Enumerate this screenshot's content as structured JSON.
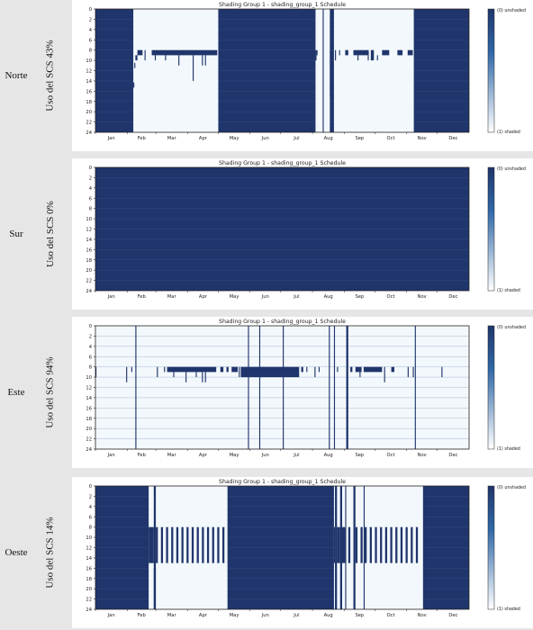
{
  "colors": {
    "unshaded": "#1f356b",
    "shaded": "#f3f8fc",
    "grid": "#4a6599",
    "page_bg": "#e6e6e6"
  },
  "common": {
    "title": "Shading Group 1 - shading_group_1 Schedule",
    "months": [
      "Jan",
      "Feb",
      "Mar",
      "Apr",
      "May",
      "Jun",
      "Jul",
      "Aug",
      "Sep",
      "Oct",
      "Nov",
      "Dec"
    ],
    "y_ticks": [
      "0",
      "2",
      "4",
      "6",
      "8",
      "10",
      "12",
      "14",
      "16",
      "18",
      "20",
      "22",
      "24"
    ],
    "legend_top": "(0) unshaded",
    "legend_bottom": "(1) shaded"
  },
  "rows": [
    {
      "orientation": "Norte",
      "usage": "Uso del SCS 43%"
    },
    {
      "orientation": "Sur",
      "usage": "Uso del SCS 0%"
    },
    {
      "orientation": "Este",
      "usage": "Uso del SCS 94%"
    },
    {
      "orientation": "Oeste",
      "usage": "Uso del SCS 14%"
    }
  ],
  "chart_data": [
    {
      "type": "heatmap",
      "title": "Shading Group 1 - shading_group_1 Schedule",
      "x_categories": [
        "Jan",
        "Feb",
        "Mar",
        "Apr",
        "May",
        "Jun",
        "Jul",
        "Aug",
        "Sep",
        "Oct",
        "Nov",
        "Dec"
      ],
      "y_range_hours": [
        0,
        24
      ],
      "colorbar": [
        "(0) unshaded",
        "(1) shaded"
      ],
      "base_state": 0,
      "rects": [
        {
          "day_start": 37,
          "day_end": 120,
          "hour_start": 0,
          "hour_end": 24,
          "state": 1
        },
        {
          "day_start": 37,
          "day_end": 38,
          "hour_start": 14.3,
          "hour_end": 15.3,
          "state": 0
        },
        {
          "day_start": 38,
          "day_end": 39,
          "hour_start": 10.5,
          "hour_end": 11.5,
          "state": 0
        },
        {
          "day_start": 39,
          "day_end": 41,
          "hour_start": 9,
          "hour_end": 10,
          "state": 0
        },
        {
          "day_start": 41,
          "day_end": 46,
          "hour_start": 8,
          "hour_end": 9,
          "state": 0
        },
        {
          "day_start": 48,
          "day_end": 49,
          "hour_start": 8,
          "hour_end": 10,
          "state": 0
        },
        {
          "day_start": 55,
          "day_end": 119,
          "hour_start": 8,
          "hour_end": 9,
          "state": 0
        },
        {
          "day_start": 58,
          "day_end": 59,
          "hour_start": 9,
          "hour_end": 10,
          "state": 0
        },
        {
          "day_start": 68,
          "day_end": 69,
          "hour_start": 9,
          "hour_end": 10,
          "state": 0
        },
        {
          "day_start": 81,
          "day_end": 82,
          "hour_start": 9,
          "hour_end": 11,
          "state": 0
        },
        {
          "day_start": 95,
          "day_end": 96,
          "hour_start": 9,
          "hour_end": 14,
          "state": 0
        },
        {
          "day_start": 104,
          "day_end": 105,
          "hour_start": 9,
          "hour_end": 11,
          "state": 0
        },
        {
          "day_start": 107,
          "day_end": 108,
          "hour_start": 9,
          "hour_end": 11,
          "state": 0
        },
        {
          "day_start": 215,
          "day_end": 222,
          "hour_start": 0,
          "hour_end": 24,
          "state": 1
        },
        {
          "day_start": 223,
          "day_end": 229,
          "hour_start": 0,
          "hour_end": 24,
          "state": 1
        },
        {
          "day_start": 233,
          "day_end": 311,
          "hour_start": 0,
          "hour_end": 24,
          "state": 1
        },
        {
          "day_start": 215,
          "day_end": 216,
          "hour_start": 8,
          "hour_end": 10,
          "state": 0
        },
        {
          "day_start": 216,
          "day_end": 217,
          "hour_start": 8,
          "hour_end": 9,
          "state": 0
        },
        {
          "day_start": 229,
          "day_end": 230,
          "hour_start": 8,
          "hour_end": 17,
          "state": 0
        },
        {
          "day_start": 234,
          "day_end": 235,
          "hour_start": 8,
          "hour_end": 10,
          "state": 0
        },
        {
          "day_start": 238,
          "day_end": 239,
          "hour_start": 8,
          "hour_end": 9,
          "state": 0
        },
        {
          "day_start": 244,
          "day_end": 247,
          "hour_start": 8,
          "hour_end": 9,
          "state": 0
        },
        {
          "day_start": 252,
          "day_end": 267,
          "hour_start": 8,
          "hour_end": 9,
          "state": 0
        },
        {
          "day_start": 256,
          "day_end": 257,
          "hour_start": 9,
          "hour_end": 10,
          "state": 0
        },
        {
          "day_start": 266,
          "day_end": 267,
          "hour_start": 9,
          "hour_end": 10,
          "state": 0
        },
        {
          "day_start": 269,
          "day_end": 272,
          "hour_start": 8,
          "hour_end": 10,
          "state": 0
        },
        {
          "day_start": 275,
          "day_end": 276,
          "hour_start": 9,
          "hour_end": 10,
          "state": 0
        },
        {
          "day_start": 280,
          "day_end": 287,
          "hour_start": 8,
          "hour_end": 9,
          "state": 0
        },
        {
          "day_start": 295,
          "day_end": 300,
          "hour_start": 8,
          "hour_end": 9,
          "state": 0
        },
        {
          "day_start": 305,
          "day_end": 310,
          "hour_start": 8,
          "hour_end": 9,
          "state": 0
        }
      ]
    },
    {
      "type": "heatmap",
      "title": "Shading Group 1 - shading_group_1 Schedule",
      "x_categories": [
        "Jan",
        "Feb",
        "Mar",
        "Apr",
        "May",
        "Jun",
        "Jul",
        "Aug",
        "Sep",
        "Oct",
        "Nov",
        "Dec"
      ],
      "y_range_hours": [
        0,
        24
      ],
      "colorbar": [
        "(0) unshaded",
        "(1) shaded"
      ],
      "base_state": 0,
      "rects": []
    },
    {
      "type": "heatmap",
      "title": "Shading Group 1 - shading_group_1 Schedule",
      "x_categories": [
        "Jan",
        "Feb",
        "Mar",
        "Apr",
        "May",
        "Jun",
        "Jul",
        "Aug",
        "Sep",
        "Oct",
        "Nov",
        "Dec"
      ],
      "y_range_hours": [
        0,
        24
      ],
      "colorbar": [
        "(0) unshaded",
        "(1) shaded"
      ],
      "base_state": 1,
      "rects": [
        {
          "day_start": 39,
          "day_end": 40,
          "hour_start": 0,
          "hour_end": 24,
          "state": 0
        },
        {
          "day_start": 149,
          "day_end": 150,
          "hour_start": 0,
          "hour_end": 24,
          "state": 0
        },
        {
          "day_start": 160,
          "day_end": 161,
          "hour_start": 0,
          "hour_end": 24,
          "state": 0
        },
        {
          "day_start": 183,
          "day_end": 184,
          "hour_start": 0,
          "hour_end": 24,
          "state": 0
        },
        {
          "day_start": 228,
          "day_end": 229,
          "hour_start": 0,
          "hour_end": 24,
          "state": 0
        },
        {
          "day_start": 233,
          "day_end": 234,
          "hour_start": 0,
          "hour_end": 24,
          "state": 0
        },
        {
          "day_start": 245,
          "day_end": 247,
          "hour_start": 0,
          "hour_end": 24,
          "state": 0
        },
        {
          "day_start": 312,
          "day_end": 313,
          "hour_start": 0,
          "hour_end": 24,
          "state": 0
        },
        {
          "day_start": 0,
          "day_end": 1,
          "hour_start": 8,
          "hour_end": 10,
          "state": 0
        },
        {
          "day_start": 30,
          "day_end": 31,
          "hour_start": 8,
          "hour_end": 11,
          "state": 0
        },
        {
          "day_start": 35,
          "day_end": 36,
          "hour_start": 8,
          "hour_end": 9,
          "state": 0
        },
        {
          "day_start": 60,
          "day_end": 61,
          "hour_start": 8,
          "hour_end": 10,
          "state": 0
        },
        {
          "day_start": 67,
          "day_end": 68,
          "hour_start": 8,
          "hour_end": 9,
          "state": 0
        },
        {
          "day_start": 70,
          "day_end": 118,
          "hour_start": 8,
          "hour_end": 9,
          "state": 0
        },
        {
          "day_start": 76,
          "day_end": 77,
          "hour_start": 9,
          "hour_end": 10,
          "state": 0
        },
        {
          "day_start": 88,
          "day_end": 89,
          "hour_start": 9,
          "hour_end": 11,
          "state": 0
        },
        {
          "day_start": 98,
          "day_end": 99,
          "hour_start": 9,
          "hour_end": 10,
          "state": 0
        },
        {
          "day_start": 104,
          "day_end": 105,
          "hour_start": 9,
          "hour_end": 11,
          "state": 0
        },
        {
          "day_start": 107,
          "day_end": 108,
          "hour_start": 9,
          "hour_end": 11,
          "state": 0
        },
        {
          "day_start": 122,
          "day_end": 125,
          "hour_start": 8,
          "hour_end": 9,
          "state": 0
        },
        {
          "day_start": 128,
          "day_end": 130,
          "hour_start": 8,
          "hour_end": 9,
          "state": 0
        },
        {
          "day_start": 133,
          "day_end": 139,
          "hour_start": 8,
          "hour_end": 9,
          "state": 0
        },
        {
          "day_start": 140,
          "day_end": 141,
          "hour_start": 8,
          "hour_end": 10,
          "state": 0
        },
        {
          "day_start": 142,
          "day_end": 199,
          "hour_start": 8,
          "hour_end": 10,
          "state": 0
        },
        {
          "day_start": 201,
          "day_end": 203,
          "hour_start": 8,
          "hour_end": 9,
          "state": 0
        },
        {
          "day_start": 206,
          "day_end": 207,
          "hour_start": 8,
          "hour_end": 9,
          "state": 0
        },
        {
          "day_start": 214,
          "day_end": 215,
          "hour_start": 8,
          "hour_end": 10,
          "state": 0
        },
        {
          "day_start": 218,
          "day_end": 219,
          "hour_start": 8,
          "hour_end": 9,
          "state": 0
        },
        {
          "day_start": 236,
          "day_end": 237,
          "hour_start": 8,
          "hour_end": 9,
          "state": 0
        },
        {
          "day_start": 249,
          "day_end": 251,
          "hour_start": 8,
          "hour_end": 9,
          "state": 0
        },
        {
          "day_start": 254,
          "day_end": 260,
          "hour_start": 8,
          "hour_end": 9,
          "state": 0
        },
        {
          "day_start": 258,
          "day_end": 259,
          "hour_start": 9,
          "hour_end": 10,
          "state": 0
        },
        {
          "day_start": 262,
          "day_end": 280,
          "hour_start": 8,
          "hour_end": 9,
          "state": 0
        },
        {
          "day_start": 282,
          "day_end": 283,
          "hour_start": 8,
          "hour_end": 11,
          "state": 0
        },
        {
          "day_start": 289,
          "day_end": 292,
          "hour_start": 8,
          "hour_end": 9,
          "state": 0
        },
        {
          "day_start": 305,
          "day_end": 306,
          "hour_start": 8,
          "hour_end": 10,
          "state": 0
        },
        {
          "day_start": 310,
          "day_end": 311,
          "hour_start": 8,
          "hour_end": 10,
          "state": 0
        },
        {
          "day_start": 338,
          "day_end": 339,
          "hour_start": 8,
          "hour_end": 10,
          "state": 0
        }
      ]
    },
    {
      "type": "heatmap",
      "title": "Shading Group 1 - shading_group_1 Schedule",
      "x_categories": [
        "Jan",
        "Feb",
        "Mar",
        "Apr",
        "May",
        "Jun",
        "Jul",
        "Aug",
        "Sep",
        "Oct",
        "Nov",
        "Dec"
      ],
      "y_range_hours": [
        0,
        24
      ],
      "colorbar": [
        "(0) unshaded",
        "(1) shaded"
      ],
      "base_state": 0,
      "rects": [
        {
          "day_start": 52,
          "day_end": 57,
          "hour_start": 0,
          "hour_end": 24,
          "state": 1
        },
        {
          "day_start": 59,
          "day_end": 129,
          "hour_start": 0,
          "hour_end": 24,
          "state": 1
        },
        {
          "day_start": 233,
          "day_end": 234,
          "hour_start": 0,
          "hour_end": 24,
          "state": 1
        },
        {
          "day_start": 236,
          "day_end": 239,
          "hour_start": 0,
          "hour_end": 24,
          "state": 1
        },
        {
          "day_start": 241,
          "day_end": 244,
          "hour_start": 0,
          "hour_end": 24,
          "state": 1
        },
        {
          "day_start": 245,
          "day_end": 252,
          "hour_start": 0,
          "hour_end": 24,
          "state": 1
        },
        {
          "day_start": 254,
          "day_end": 262,
          "hour_start": 0,
          "hour_end": 24,
          "state": 1
        },
        {
          "day_start": 263,
          "day_end": 320,
          "hour_start": 0,
          "hour_end": 24,
          "state": 1
        },
        {
          "day_start": 57,
          "day_end": 59,
          "hour_start": 16,
          "hour_end": 24,
          "state": 0
        },
        {
          "day_start": 52,
          "day_end": 57,
          "hour_start": 8,
          "hour_end": 15,
          "state": 0
        },
        {
          "day_start": 59,
          "day_end": 61,
          "hour_start": 8,
          "hour_end": 15,
          "state": 0
        },
        {
          "day_start": 64,
          "day_end": 66,
          "hour_start": 8,
          "hour_end": 15,
          "state": 0
        },
        {
          "day_start": 69,
          "day_end": 71,
          "hour_start": 8,
          "hour_end": 15,
          "state": 0
        },
        {
          "day_start": 74,
          "day_end": 76,
          "hour_start": 8,
          "hour_end": 15,
          "state": 0
        },
        {
          "day_start": 79,
          "day_end": 81,
          "hour_start": 8,
          "hour_end": 15,
          "state": 0
        },
        {
          "day_start": 84,
          "day_end": 86,
          "hour_start": 8,
          "hour_end": 15,
          "state": 0
        },
        {
          "day_start": 89,
          "day_end": 91,
          "hour_start": 8,
          "hour_end": 15,
          "state": 0
        },
        {
          "day_start": 94,
          "day_end": 96,
          "hour_start": 8,
          "hour_end": 15,
          "state": 0
        },
        {
          "day_start": 99,
          "day_end": 101,
          "hour_start": 8,
          "hour_end": 15,
          "state": 0
        },
        {
          "day_start": 104,
          "day_end": 106,
          "hour_start": 8,
          "hour_end": 15,
          "state": 0
        },
        {
          "day_start": 109,
          "day_end": 111,
          "hour_start": 8,
          "hour_end": 15,
          "state": 0
        },
        {
          "day_start": 114,
          "day_end": 116,
          "hour_start": 8,
          "hour_end": 15,
          "state": 0
        },
        {
          "day_start": 119,
          "day_end": 121,
          "hour_start": 8,
          "hour_end": 15,
          "state": 0
        },
        {
          "day_start": 124,
          "day_end": 126,
          "hour_start": 8,
          "hour_end": 15,
          "state": 0
        },
        {
          "day_start": 233,
          "day_end": 234,
          "hour_start": 8,
          "hour_end": 15,
          "state": 0
        },
        {
          "day_start": 236,
          "day_end": 239,
          "hour_start": 8,
          "hour_end": 15,
          "state": 0
        },
        {
          "day_start": 241,
          "day_end": 244,
          "hour_start": 8,
          "hour_end": 15,
          "state": 0
        },
        {
          "day_start": 247,
          "day_end": 249,
          "hour_start": 8,
          "hour_end": 15,
          "state": 0
        },
        {
          "day_start": 254,
          "day_end": 256,
          "hour_start": 8,
          "hour_end": 15,
          "state": 0
        },
        {
          "day_start": 259,
          "day_end": 261,
          "hour_start": 8,
          "hour_end": 15,
          "state": 0
        },
        {
          "day_start": 263,
          "day_end": 265,
          "hour_start": 8,
          "hour_end": 15,
          "state": 0
        },
        {
          "day_start": 268,
          "day_end": 270,
          "hour_start": 8,
          "hour_end": 15,
          "state": 0
        },
        {
          "day_start": 273,
          "day_end": 275,
          "hour_start": 8,
          "hour_end": 15,
          "state": 0
        },
        {
          "day_start": 278,
          "day_end": 280,
          "hour_start": 8,
          "hour_end": 15,
          "state": 0
        },
        {
          "day_start": 283,
          "day_end": 285,
          "hour_start": 8,
          "hour_end": 15,
          "state": 0
        },
        {
          "day_start": 288,
          "day_end": 290,
          "hour_start": 8,
          "hour_end": 15,
          "state": 0
        },
        {
          "day_start": 293,
          "day_end": 295,
          "hour_start": 8,
          "hour_end": 15,
          "state": 0
        },
        {
          "day_start": 298,
          "day_end": 300,
          "hour_start": 8,
          "hour_end": 15,
          "state": 0
        },
        {
          "day_start": 303,
          "day_end": 305,
          "hour_start": 8,
          "hour_end": 15,
          "state": 0
        },
        {
          "day_start": 308,
          "day_end": 310,
          "hour_start": 8,
          "hour_end": 15,
          "state": 0
        },
        {
          "day_start": 313,
          "day_end": 315,
          "hour_start": 8,
          "hour_end": 15,
          "state": 0
        }
      ]
    }
  ]
}
